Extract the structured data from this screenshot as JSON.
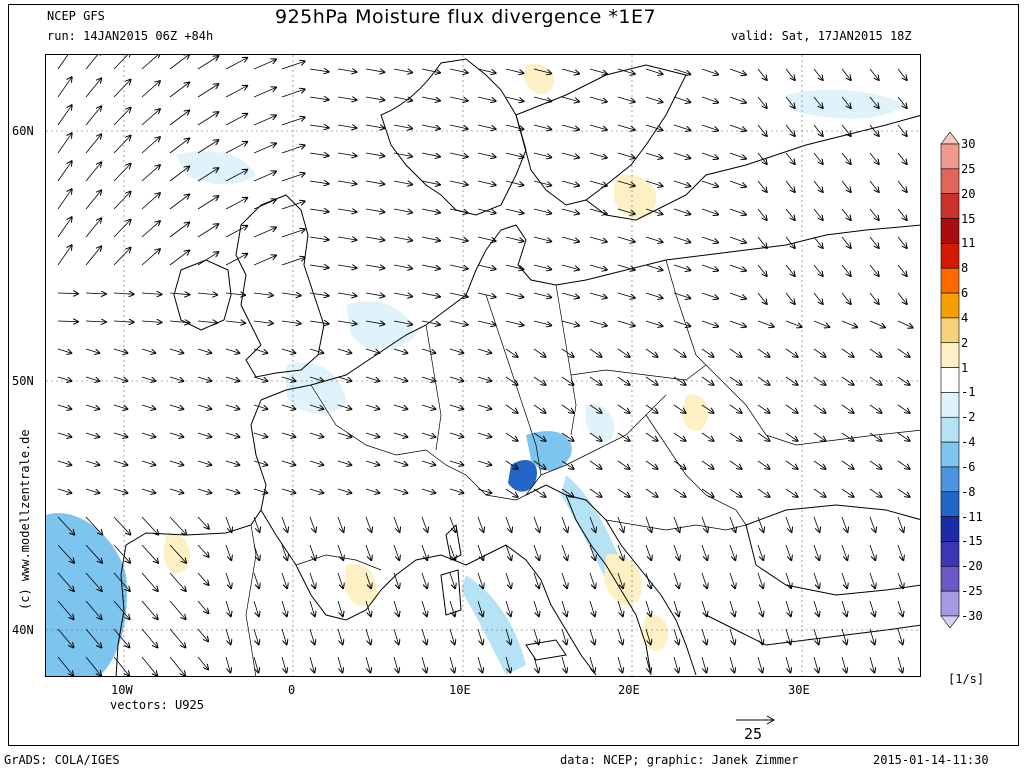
{
  "header": {
    "model": "NCEP GFS",
    "run": "run: 14JAN2015 06Z +84h",
    "title": "925hPa Moisture flux divergence *1E7",
    "valid": "valid: Sat, 17JAN2015 18Z"
  },
  "axes": {
    "lat_labels": [
      "60N",
      "50N",
      "40N"
    ],
    "lon_labels": [
      "10W",
      "0",
      "10E",
      "20E",
      "30E"
    ]
  },
  "vectors_label": "vectors: U925",
  "vector_ref": "25",
  "colorbar": {
    "unit": "[1/s]",
    "labels": [
      "30",
      "25",
      "20",
      "15",
      "11",
      "8",
      "6",
      "4",
      "2",
      "1",
      "-1",
      "-2",
      "-4",
      "-6",
      "-8",
      "-11",
      "-15",
      "-20",
      "-25",
      "-30"
    ],
    "colors": [
      "#f7c6c0",
      "#f09a8e",
      "#e0655a",
      "#c8322a",
      "#a80e0c",
      "#d41a00",
      "#ff6a00",
      "#f5a000",
      "#f8d27a",
      "#fdf0c4",
      "#ffffff",
      "#e0f3fb",
      "#b6e2f5",
      "#7dc4ee",
      "#4a95de",
      "#2465c8",
      "#1c2ca8",
      "#3b36b4",
      "#6a5ac8",
      "#a79ae0",
      "#d6cff2"
    ]
  },
  "footer": {
    "left": "GrADS: COLA/IGES",
    "mid": "data: NCEP; graphic: Janek Zimmer",
    "right": "2015-01-14-11:30"
  },
  "watermark": "(c)  www.modellzentrale.de"
}
